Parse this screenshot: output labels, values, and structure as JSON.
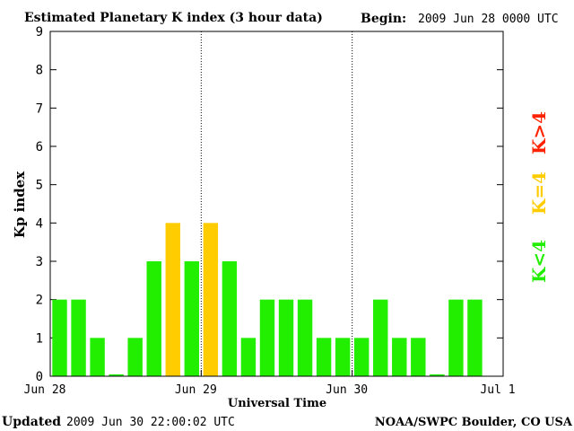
{
  "header": {
    "title": "Estimated Planetary K index (3 hour data)",
    "begin_label": "Begin:",
    "begin_value": "2009 Jun 28 0000 UTC"
  },
  "footer": {
    "updated_label": "Updated",
    "updated_value": "2009 Jun 30 22:00:02 UTC",
    "source": "NOAA/SWPC Boulder, CO USA"
  },
  "legend": {
    "above": "K>4",
    "equal": "K=4",
    "below": "K<4"
  },
  "colors": {
    "below": "#22ee00",
    "equal": "#ffcc00",
    "above": "#ff2200",
    "frame": "#000000",
    "background": "#ffffff"
  },
  "chart_data": {
    "type": "bar",
    "title": "Estimated Planetary K index (3 hour data)",
    "xlabel": "Universal Time",
    "ylabel": "Kp index",
    "ylim": [
      0,
      9
    ],
    "yticks": [
      "0",
      "1",
      "2",
      "3",
      "4",
      "5",
      "6",
      "7",
      "8",
      "9"
    ],
    "xticks": [
      "Jun 28",
      "Jun 29",
      "Jun 30",
      "Jul 1"
    ],
    "xlim_hours": [
      0,
      72
    ],
    "interval_hours": 3,
    "day_separators_hours": [
      24,
      48
    ],
    "values": [
      2,
      2,
      1,
      0.05,
      1,
      3,
      4,
      3,
      4,
      3,
      1,
      2,
      2,
      2,
      1,
      1,
      1,
      2,
      1,
      1,
      0.05,
      2,
      2
    ],
    "grid": false,
    "legend_position": "right, rotated"
  }
}
